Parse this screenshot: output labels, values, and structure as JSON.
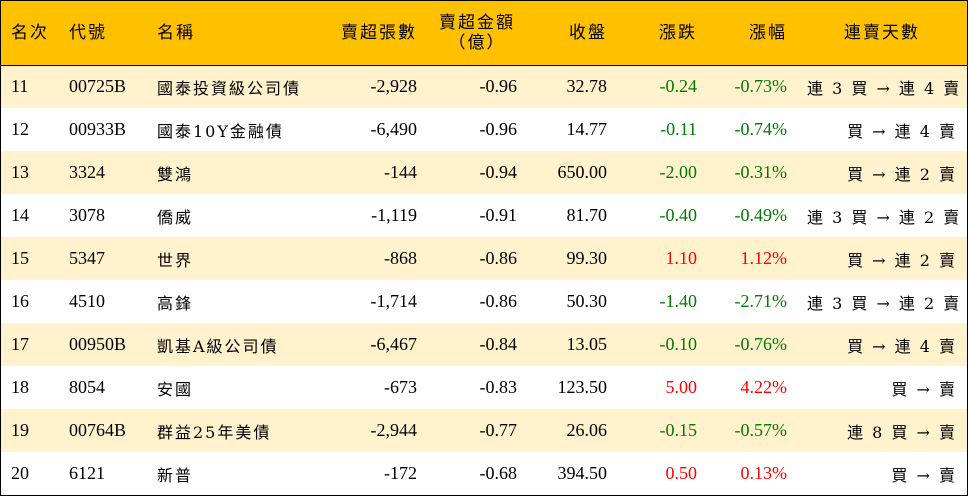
{
  "headers": {
    "rank": "名次",
    "code": "代號",
    "name": "名稱",
    "net_sell_lots": "賣超張數",
    "net_sell_amount_line1": "賣超金額",
    "net_sell_amount_line2": "（億）",
    "close": "收盤",
    "change": "漲跌",
    "change_pct": "漲幅",
    "streak": "連賣天數"
  },
  "colors": {
    "header_bg": "#ffc000",
    "stripe_bg": "#fff2cc",
    "up": "#ff0000",
    "down": "#007a00"
  },
  "rows": [
    {
      "rank": "11",
      "code": "00725B",
      "name": "國泰投資級公司債",
      "net_sell_lots": "-2,928",
      "net_sell_amount": "-0.96",
      "close": "32.78",
      "change": "-0.24",
      "change_pct": "-0.73%",
      "streak": "連 3 買 → 連 4 賣"
    },
    {
      "rank": "12",
      "code": "00933B",
      "name": "國泰10Y金融債",
      "net_sell_lots": "-6,490",
      "net_sell_amount": "-0.96",
      "close": "14.77",
      "change": "-0.11",
      "change_pct": "-0.74%",
      "streak": "買 → 連 4 賣"
    },
    {
      "rank": "13",
      "code": "3324",
      "name": "雙鴻",
      "net_sell_lots": "-144",
      "net_sell_amount": "-0.94",
      "close": "650.00",
      "change": "-2.00",
      "change_pct": "-0.31%",
      "streak": "買 → 連 2 賣"
    },
    {
      "rank": "14",
      "code": "3078",
      "name": "僑威",
      "net_sell_lots": "-1,119",
      "net_sell_amount": "-0.91",
      "close": "81.70",
      "change": "-0.40",
      "change_pct": "-0.49%",
      "streak": "連 3 買 → 連 2 賣"
    },
    {
      "rank": "15",
      "code": "5347",
      "name": "世界",
      "net_sell_lots": "-868",
      "net_sell_amount": "-0.86",
      "close": "99.30",
      "change": "1.10",
      "change_pct": "1.12%",
      "streak": "買 → 連 2 賣"
    },
    {
      "rank": "16",
      "code": "4510",
      "name": "高鋒",
      "net_sell_lots": "-1,714",
      "net_sell_amount": "-0.86",
      "close": "50.30",
      "change": "-1.40",
      "change_pct": "-2.71%",
      "streak": "連 3 買 → 連 2 賣"
    },
    {
      "rank": "17",
      "code": "00950B",
      "name": "凱基A級公司債",
      "net_sell_lots": "-6,467",
      "net_sell_amount": "-0.84",
      "close": "13.05",
      "change": "-0.10",
      "change_pct": "-0.76%",
      "streak": "買 → 連 4 賣"
    },
    {
      "rank": "18",
      "code": "8054",
      "name": "安國",
      "net_sell_lots": "-673",
      "net_sell_amount": "-0.83",
      "close": "123.50",
      "change": "5.00",
      "change_pct": "4.22%",
      "streak": "買 → 賣"
    },
    {
      "rank": "19",
      "code": "00764B",
      "name": "群益25年美債",
      "net_sell_lots": "-2,944",
      "net_sell_amount": "-0.77",
      "close": "26.06",
      "change": "-0.15",
      "change_pct": "-0.57%",
      "streak": "連 8 買 → 賣"
    },
    {
      "rank": "20",
      "code": "6121",
      "name": "新普",
      "net_sell_lots": "-172",
      "net_sell_amount": "-0.68",
      "close": "394.50",
      "change": "0.50",
      "change_pct": "0.13%",
      "streak": "買 → 賣"
    }
  ]
}
